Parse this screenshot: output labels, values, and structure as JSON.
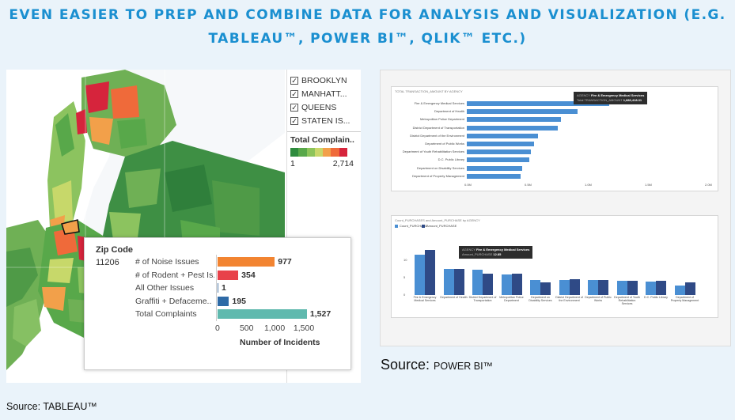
{
  "headline": {
    "line1": "EVEN EASIER TO PREP AND COMBINE DATA FOR ANALYSIS AND VISUALIZATION (E.G.",
    "line2": "TABLEAU™, POWER BI™, QLIK™ ETC.)"
  },
  "tableau": {
    "legend": {
      "boroughs": [
        {
          "label": "BROOKLYN",
          "checked": true
        },
        {
          "label": "MANHATT...",
          "checked": true
        },
        {
          "label": "QUEENS",
          "checked": true
        },
        {
          "label": "STATEN IS...",
          "checked": true
        }
      ],
      "check_mark": "✓",
      "color_title": "Total Complain..",
      "ramp_colors": [
        "#2e8b3e",
        "#58a84a",
        "#8dc45a",
        "#c9d76a",
        "#f2a04a",
        "#ef6a3a",
        "#d6243c"
      ],
      "range_min": "1",
      "range_max": "2,714"
    },
    "tooltip": {
      "header": "Zip Code",
      "zip": "11206",
      "rows": [
        {
          "label": "# of Noise Issues",
          "value": 977,
          "display": "977",
          "color": "#f28431"
        },
        {
          "label": "# of Rodent + Pest Is..",
          "value": 354,
          "display": "354",
          "color": "#e8414a"
        },
        {
          "label": "All Other Issues",
          "value": 1,
          "display": "1",
          "color": "#4e79a7"
        },
        {
          "label": "Graffiti + Defaceme..",
          "value": 195,
          "display": "195",
          "color": "#2e6aa6"
        },
        {
          "label": "Total Complaints",
          "value": 1527,
          "display": "1,527",
          "color": "#5fb9ae"
        }
      ],
      "axis_ticks": [
        "0",
        "500",
        "1,000",
        "1,500"
      ],
      "axis_max": 1650,
      "axis_title": "Number of Incidents"
    },
    "source": {
      "prefix": "Source: ",
      "name": "TABLEAU™"
    }
  },
  "powerbi": {
    "chart1": {
      "title": "TOTAL TRANSACTION_AMOUNT BY AGENCY",
      "agencies": [
        {
          "label": "Fire & Emergency Medical Services",
          "value": 1.0
        },
        {
          "label": "Department of Health",
          "value": 0.78
        },
        {
          "label": "Metropolitan Police Department",
          "value": 0.66
        },
        {
          "label": "District Department of Transportation",
          "value": 0.64
        },
        {
          "label": "District Department of the Environment",
          "value": 0.5
        },
        {
          "label": "Department of Public Works",
          "value": 0.47
        },
        {
          "label": "Department of Youth Rehabilitation Services",
          "value": 0.45
        },
        {
          "label": "D.C. Public Library",
          "value": 0.44
        },
        {
          "label": "Department on Disability Services",
          "value": 0.39
        },
        {
          "label": "Department of Property Management",
          "value": 0.38
        }
      ],
      "ticks": [
        "0.0M",
        "0.5M",
        "1.0M",
        "1.5M",
        "2.0M"
      ],
      "tooltip": {
        "agency_key": "AGENCY",
        "agency_value": "Fire & Emergency Medical Services",
        "amount_key": "Total TRANSACTION_AMOUNT",
        "amount_value": "1,883,418.31"
      }
    },
    "chart2": {
      "title": "Count_PURCHASES and Amount_PURCHASE by AGENCY",
      "legend": [
        {
          "label": "Count_PURCHASE",
          "color": "#4a8fd3"
        },
        {
          "label": "Amount_PURCHASE",
          "color": "#2f4a86"
        }
      ],
      "ticks": [
        "10",
        "5",
        "0"
      ],
      "ymax": 14,
      "agencies": [
        {
          "label": "Fire & Emergency Medical Services",
          "a": 11.5,
          "b": 12.8
        },
        {
          "label": "Department of Health",
          "a": 7.5,
          "b": 7.4
        },
        {
          "label": "District Department of Transportation",
          "a": 7.3,
          "b": 6.2
        },
        {
          "label": "Metropolitan Police Department",
          "a": 5.9,
          "b": 6.1
        },
        {
          "label": "Department on Disability Services",
          "a": 4.4,
          "b": 3.6
        },
        {
          "label": "District Department of the Environment",
          "a": 4.4,
          "b": 4.6
        },
        {
          "label": "Department of Public Works",
          "a": 4.4,
          "b": 4.4
        },
        {
          "label": "Department of Youth Rehabilitation Services",
          "a": 4.0,
          "b": 4.1
        },
        {
          "label": "D.C. Public Library",
          "a": 3.9,
          "b": 4.1
        },
        {
          "label": "Department of Property Management",
          "a": 2.6,
          "b": 3.6
        }
      ],
      "tooltip": {
        "agency_key": "AGENCY",
        "agency_value": "Fire & Emergency Medical Services",
        "amount_key": "Amount_PURCHASE",
        "amount_value": "12.85"
      }
    },
    "source": {
      "prefix": "Source: ",
      "name": "POWER BI™"
    }
  }
}
